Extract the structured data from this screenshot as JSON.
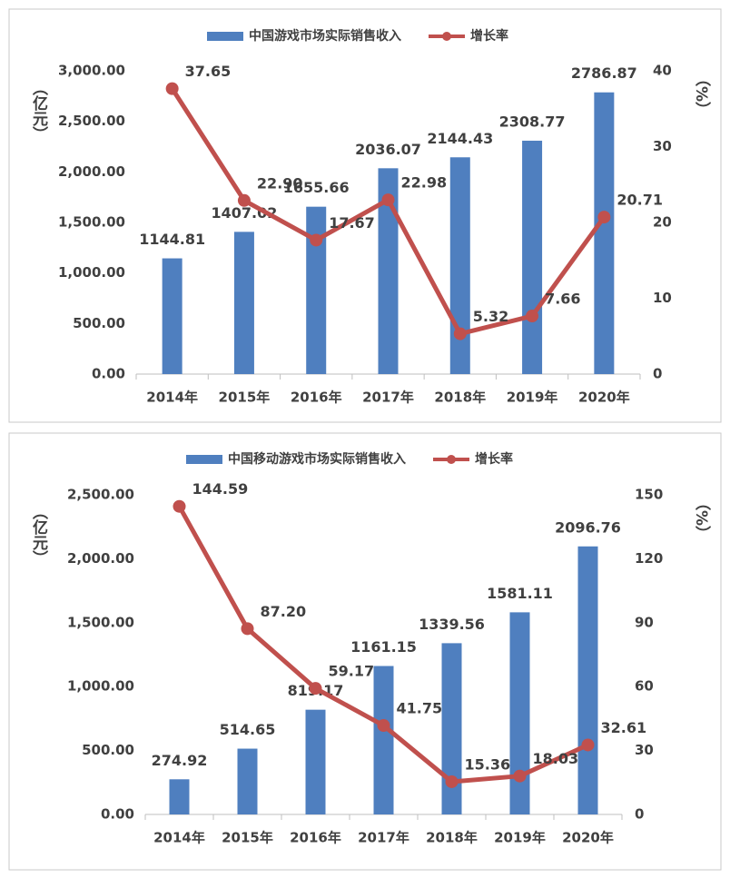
{
  "chart_data": [
    {
      "type": "bar-line",
      "y_label": "（亿元）",
      "y2_label": "（%）",
      "categories": [
        "2014年",
        "2015年",
        "2016年",
        "2017年",
        "2018年",
        "2019年",
        "2020年"
      ],
      "series": [
        {
          "name": "中国游戏市场实际销售收入",
          "type": "bar",
          "color": "#4f7fbf",
          "values": [
            1144.81,
            1407.02,
            1655.66,
            2036.07,
            2144.43,
            2308.77,
            2786.87
          ],
          "value_labels": [
            "1144.81",
            "1407.02",
            "1655.66",
            "2036.07",
            "2144.43",
            "2308.77",
            "2786.87"
          ]
        },
        {
          "name": "增长率",
          "type": "line",
          "color": "#c0504d",
          "axis": "y2",
          "values": [
            37.65,
            22.9,
            17.67,
            22.98,
            5.32,
            7.66,
            20.71
          ],
          "value_labels": [
            "37.65",
            "22.90",
            "17.67",
            "22.98",
            "5.32",
            "7.66",
            "20.71"
          ]
        }
      ],
      "ylim": [
        0,
        3000
      ],
      "yticks": [
        {
          "value": 0,
          "label": "0.00"
        },
        {
          "value": 500,
          "label": "500.00"
        },
        {
          "value": 1000,
          "label": "1,000.00"
        },
        {
          "value": 1500,
          "label": "1,500.00"
        },
        {
          "value": 2000,
          "label": "2,000.00"
        },
        {
          "value": 2500,
          "label": "2,500.00"
        },
        {
          "value": 3000,
          "label": "3,000.00"
        }
      ],
      "y2lim": [
        0,
        40
      ],
      "y2ticks": [
        0,
        10,
        20,
        30,
        40
      ]
    },
    {
      "type": "bar-line",
      "y_label": "（亿元）",
      "y2_label": "（%）",
      "categories": [
        "2014年",
        "2015年",
        "2016年",
        "2017年",
        "2018年",
        "2019年",
        "2020年"
      ],
      "series": [
        {
          "name": "中国移动游戏市场实际销售收入",
          "type": "bar",
          "color": "#4f7fbf",
          "values": [
            274.92,
            514.65,
            819.17,
            1161.15,
            1339.56,
            1581.11,
            2096.76
          ],
          "value_labels": [
            "274.92",
            "514.65",
            "819.17",
            "1161.15",
            "1339.56",
            "1581.11",
            "2096.76"
          ]
        },
        {
          "name": "增长率",
          "type": "line",
          "color": "#c0504d",
          "axis": "y2",
          "values": [
            144.59,
            87.2,
            59.17,
            41.75,
            15.36,
            18.03,
            32.61
          ],
          "value_labels": [
            "144.59",
            "87.20",
            "59.17",
            "41.75",
            "15.36",
            "18.03",
            "32.61"
          ]
        }
      ],
      "ylim": [
        0,
        2500
      ],
      "yticks": [
        {
          "value": 0,
          "label": "0.00"
        },
        {
          "value": 500,
          "label": "500.00"
        },
        {
          "value": 1000,
          "label": "1,000.00"
        },
        {
          "value": 1500,
          "label": "1,500.00"
        },
        {
          "value": 2000,
          "label": "2,000.00"
        },
        {
          "value": 2500,
          "label": "2,500.00"
        }
      ],
      "y2lim": [
        0,
        150
      ],
      "y2ticks": [
        0,
        30,
        60,
        90,
        120,
        150
      ]
    }
  ]
}
